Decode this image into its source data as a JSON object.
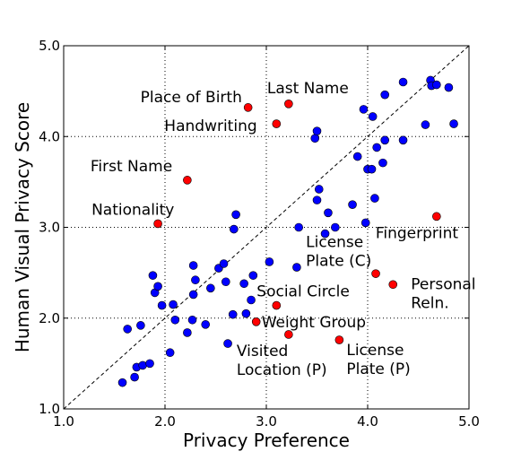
{
  "chart_data": {
    "type": "scatter",
    "xlabel": "Privacy Preference",
    "ylabel": "Human Visual Privacy Score",
    "xlim": [
      1.0,
      5.0
    ],
    "ylim": [
      1.0,
      5.0
    ],
    "xticks": [
      "1.0",
      "2.0",
      "3.0",
      "4.0",
      "5.0"
    ],
    "yticks": [
      "1.0",
      "2.0",
      "3.0",
      "4.0",
      "5.0"
    ],
    "grid": true,
    "diagonal_reference_line": true,
    "colors": {
      "blue": "#0000ff",
      "red": "#ff0000"
    },
    "series": [
      {
        "color": "#0000ff",
        "points": [
          [
            1.58,
            1.29
          ],
          [
            1.7,
            1.35
          ],
          [
            1.72,
            1.46
          ],
          [
            1.78,
            1.48
          ],
          [
            1.85,
            1.5
          ],
          [
            2.05,
            1.62
          ],
          [
            1.63,
            1.88
          ],
          [
            1.76,
            1.92
          ],
          [
            1.9,
            2.28
          ],
          [
            1.88,
            2.47
          ],
          [
            1.93,
            2.35
          ],
          [
            1.97,
            2.14
          ],
          [
            2.08,
            2.15
          ],
          [
            2.1,
            1.98
          ],
          [
            2.22,
            1.84
          ],
          [
            2.27,
            1.98
          ],
          [
            2.4,
            1.93
          ],
          [
            2.28,
            2.26
          ],
          [
            2.3,
            2.42
          ],
          [
            2.28,
            2.58
          ],
          [
            2.45,
            2.33
          ],
          [
            2.53,
            2.55
          ],
          [
            2.6,
            2.4
          ],
          [
            2.58,
            2.6
          ],
          [
            2.67,
            2.04
          ],
          [
            2.62,
            1.72
          ],
          [
            2.8,
            2.05
          ],
          [
            2.85,
            2.2
          ],
          [
            2.87,
            2.47
          ],
          [
            2.78,
            2.38
          ],
          [
            2.68,
            2.98
          ],
          [
            2.7,
            3.14
          ],
          [
            3.03,
            2.62
          ],
          [
            3.3,
            2.56
          ],
          [
            3.32,
            3.0
          ],
          [
            3.5,
            3.3
          ],
          [
            3.52,
            3.42
          ],
          [
            3.58,
            2.93
          ],
          [
            3.61,
            3.16
          ],
          [
            3.68,
            3.0
          ],
          [
            3.85,
            3.25
          ],
          [
            3.98,
            3.05
          ],
          [
            4.07,
            3.32
          ],
          [
            4.15,
            3.71
          ],
          [
            4.0,
            3.64
          ],
          [
            4.04,
            3.64
          ],
          [
            3.9,
            3.78
          ],
          [
            4.09,
            3.88
          ],
          [
            4.17,
            3.96
          ],
          [
            4.35,
            3.96
          ],
          [
            4.05,
            4.22
          ],
          [
            4.17,
            4.46
          ],
          [
            3.96,
            4.3
          ],
          [
            3.48,
            3.98
          ],
          [
            3.5,
            4.06
          ],
          [
            4.35,
            4.6
          ],
          [
            4.62,
            4.62
          ],
          [
            4.63,
            4.56
          ],
          [
            4.68,
            4.57
          ],
          [
            4.8,
            4.54
          ],
          [
            4.57,
            4.13
          ],
          [
            4.85,
            4.14
          ]
        ]
      },
      {
        "color": "#ff0000",
        "points": [
          [
            1.93,
            3.04
          ],
          [
            2.22,
            3.52
          ],
          [
            2.82,
            4.32
          ],
          [
            3.1,
            4.14
          ],
          [
            3.22,
            4.36
          ],
          [
            4.68,
            3.12
          ],
          [
            4.08,
            2.49
          ],
          [
            4.25,
            2.37
          ],
          [
            3.1,
            2.14
          ],
          [
            2.9,
            1.96
          ],
          [
            3.22,
            1.82
          ],
          [
            3.72,
            1.76
          ]
        ]
      }
    ],
    "annotations": [
      {
        "lines": [
          "Nationality"
        ],
        "x": 1.93,
        "y": 3.04
      },
      {
        "lines": [
          "First Name"
        ],
        "x": 2.22,
        "y": 3.52
      },
      {
        "lines": [
          "Place of Birth"
        ],
        "x": 2.82,
        "y": 4.32
      },
      {
        "lines": [
          "Handwriting"
        ],
        "x": 3.1,
        "y": 4.14
      },
      {
        "lines": [
          "Last Name"
        ],
        "x": 3.22,
        "y": 4.36
      },
      {
        "lines": [
          "Fingerprint"
        ],
        "x": 4.68,
        "y": 3.12
      },
      {
        "lines": [
          "License",
          "Plate (C)"
        ],
        "x": 3.32,
        "y": 3.0
      },
      {
        "lines": [
          "Personal",
          "Reln."
        ],
        "x": 4.25,
        "y": 2.37
      },
      {
        "lines": [
          "Social Circle"
        ],
        "x": 3.1,
        "y": 2.14
      },
      {
        "lines": [
          "Weight Group"
        ],
        "x": 2.9,
        "y": 1.96
      },
      {
        "lines": [
          "Visited",
          "Location (P)"
        ],
        "x": 3.22,
        "y": 1.82
      },
      {
        "lines": [
          "License",
          "Plate (P)"
        ],
        "x": 3.72,
        "y": 1.76
      }
    ]
  }
}
